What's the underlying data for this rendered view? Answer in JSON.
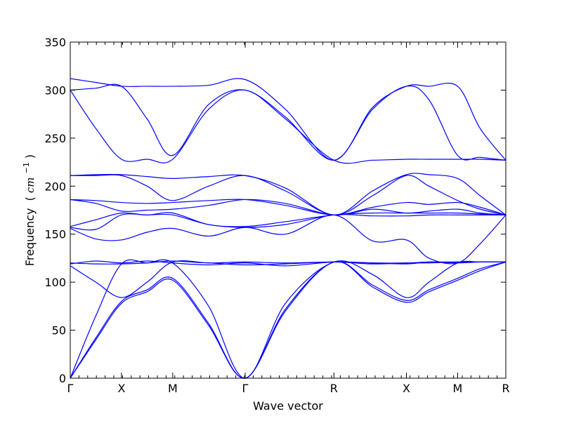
{
  "chart_data": {
    "type": "line",
    "title": "",
    "xlabel": "Wave vector",
    "ylabel": "Frequency",
    "ylabel_unit_prefix": "(",
    "ylabel_unit": "cm",
    "ylabel_unit_exp": "−1",
    "ylabel_unit_suffix": ")",
    "ylim": [
      0,
      350
    ],
    "xlim": [
      0,
      8.5
    ],
    "y_ticks": [
      0,
      50,
      100,
      150,
      200,
      250,
      300,
      350
    ],
    "x_ticks": [
      {
        "label": "Γ",
        "value": 0
      },
      {
        "label": "X",
        "value": 1
      },
      {
        "label": "M",
        "value": 2
      },
      {
        "label": "Γ",
        "value": 3.414
      },
      {
        "label": "R",
        "value": 5.146
      },
      {
        "label": "X",
        "value": 6.56
      },
      {
        "label": "M",
        "value": 7.56
      },
      {
        "label": "R",
        "value": 8.5
      }
    ],
    "grid": false,
    "line_color": "#0000ff",
    "series": [
      {
        "x": [
          0,
          0.5,
          1,
          1.5,
          2,
          2.7,
          3.414,
          4.2,
          5.146,
          5.9,
          6.56,
          7.0,
          7.56,
          8.0,
          8.5
        ],
        "values": [
          0,
          40,
          78,
          90,
          102,
          55,
          0,
          70,
          121,
          95,
          79,
          90,
          102,
          112,
          121
        ]
      },
      {
        "x": [
          0,
          0.5,
          1,
          1.5,
          2,
          2.7,
          3.414,
          4.2,
          5.146,
          5.9,
          6.56,
          7.0,
          7.56,
          8.0,
          8.5
        ],
        "values": [
          0,
          42,
          80,
          92,
          104,
          57,
          0,
          72,
          121,
          97,
          81,
          92,
          104,
          114,
          121
        ]
      },
      {
        "x": [
          0,
          0.5,
          1,
          1.5,
          2,
          2.7,
          3.414,
          4.2,
          5.146,
          5.9,
          6.56,
          7.0,
          7.56,
          8.0,
          8.5
        ],
        "values": [
          0,
          65,
          119,
          120,
          120,
          75,
          0,
          78,
          121,
          108,
          84,
          100,
          120,
          121,
          121
        ]
      },
      {
        "x": [
          0,
          0.5,
          1,
          1.5,
          2,
          2.7,
          3.414,
          4.2,
          5.146,
          5.9,
          6.56,
          7.0,
          7.56,
          8.0,
          8.5
        ],
        "values": [
          117,
          100,
          84,
          100,
          121,
          120,
          118,
          119,
          121,
          119,
          120,
          120,
          121,
          121,
          121
        ]
      },
      {
        "x": [
          0,
          0.5,
          1,
          1.5,
          2,
          2.7,
          3.414,
          4.2,
          5.146,
          5.9,
          6.56,
          7.0,
          7.56,
          8.0,
          8.5
        ],
        "values": [
          119,
          122,
          120,
          122,
          120,
          118,
          120,
          117,
          121,
          120,
          119,
          121,
          120,
          121,
          121
        ]
      },
      {
        "x": [
          0,
          0.5,
          1,
          1.5,
          2,
          2.7,
          3.414,
          4.2,
          5.146,
          5.9,
          6.56,
          7.0,
          7.56,
          8.0,
          8.5
        ],
        "values": [
          120,
          119,
          119,
          120,
          122,
          120,
          121,
          120,
          121,
          120,
          120,
          121,
          121,
          121,
          121
        ]
      },
      {
        "x": [
          0,
          0.5,
          1,
          1.5,
          2,
          2.7,
          3.414,
          4.2,
          5.146,
          5.9,
          6.56,
          7.0,
          7.56,
          8.0,
          8.5
        ],
        "values": [
          156,
          145,
          144,
          152,
          156,
          148,
          157,
          150,
          170,
          143,
          144,
          125,
          120,
          140,
          170
        ]
      },
      {
        "x": [
          0,
          0.5,
          1,
          1.5,
          2,
          2.7,
          3.414,
          4.2,
          5.146,
          5.9,
          6.56,
          7.0,
          7.56,
          8.0,
          8.5
        ],
        "values": [
          157,
          155,
          170,
          170,
          170,
          160,
          157,
          160,
          170,
          169,
          169,
          170,
          170,
          170,
          170
        ]
      },
      {
        "x": [
          0,
          0.5,
          1,
          1.5,
          2,
          2.7,
          3.414,
          4.2,
          5.146,
          5.9,
          6.56,
          7.0,
          7.56,
          8.0,
          8.5
        ],
        "values": [
          158,
          165,
          172,
          170,
          172,
          160,
          158,
          163,
          170,
          172,
          172,
          172,
          172,
          171,
          170
        ]
      },
      {
        "x": [
          0,
          0.5,
          1,
          1.5,
          2,
          2.7,
          3.414,
          4.2,
          5.146,
          5.9,
          6.56,
          7.0,
          7.56,
          8.0,
          8.5
        ],
        "values": [
          186,
          182,
          174,
          175,
          176,
          180,
          186,
          182,
          170,
          176,
          172,
          174,
          176,
          172,
          170
        ]
      },
      {
        "x": [
          0,
          0.5,
          1,
          1.5,
          2,
          2.7,
          3.414,
          4.2,
          5.146,
          5.9,
          6.56,
          7.0,
          7.56,
          8.0,
          8.5
        ],
        "values": [
          186,
          185,
          183,
          182,
          183,
          185,
          186,
          180,
          170,
          178,
          183,
          181,
          183,
          178,
          170
        ]
      },
      {
        "x": [
          0,
          0.5,
          1,
          1.5,
          2,
          2.7,
          3.414,
          4.2,
          5.146,
          5.9,
          6.56,
          7.0,
          7.56,
          8.0,
          8.5
        ],
        "values": [
          211,
          211,
          211,
          200,
          185,
          200,
          211,
          195,
          170,
          190,
          211,
          200,
          185,
          176,
          170
        ]
      },
      {
        "x": [
          0,
          0.5,
          1,
          1.5,
          2,
          2.7,
          3.414,
          4.2,
          5.146,
          5.9,
          6.56,
          7.0,
          7.56,
          8.0,
          8.5
        ],
        "values": [
          211,
          212,
          212,
          210,
          208,
          210,
          211,
          198,
          170,
          195,
          212,
          212,
          208,
          190,
          170
        ]
      },
      {
        "x": [
          0,
          0.5,
          1,
          1.5,
          2,
          2.7,
          3.414,
          4.2,
          5.146,
          5.9,
          6.56,
          7.0,
          7.56,
          8.0,
          8.5
        ],
        "values": [
          300,
          260,
          228,
          228,
          228,
          280,
          300,
          270,
          227,
          227,
          228,
          228,
          228,
          228,
          227
        ]
      },
      {
        "x": [
          0,
          0.5,
          1,
          1.5,
          2,
          2.7,
          3.414,
          4.2,
          5.146,
          5.9,
          6.56,
          7.0,
          7.56,
          8.0,
          8.5
        ],
        "values": [
          300,
          302,
          304,
          270,
          232,
          285,
          300,
          272,
          227,
          280,
          304,
          290,
          232,
          230,
          227
        ]
      },
      {
        "x": [
          0,
          0.5,
          1,
          1.5,
          2,
          2.7,
          3.414,
          4.2,
          5.146,
          5.9,
          6.56,
          7.0,
          7.56,
          8.0,
          8.5
        ],
        "values": [
          312,
          308,
          304,
          304,
          304,
          305,
          311,
          280,
          227,
          282,
          304,
          304,
          304,
          260,
          227
        ]
      }
    ]
  }
}
